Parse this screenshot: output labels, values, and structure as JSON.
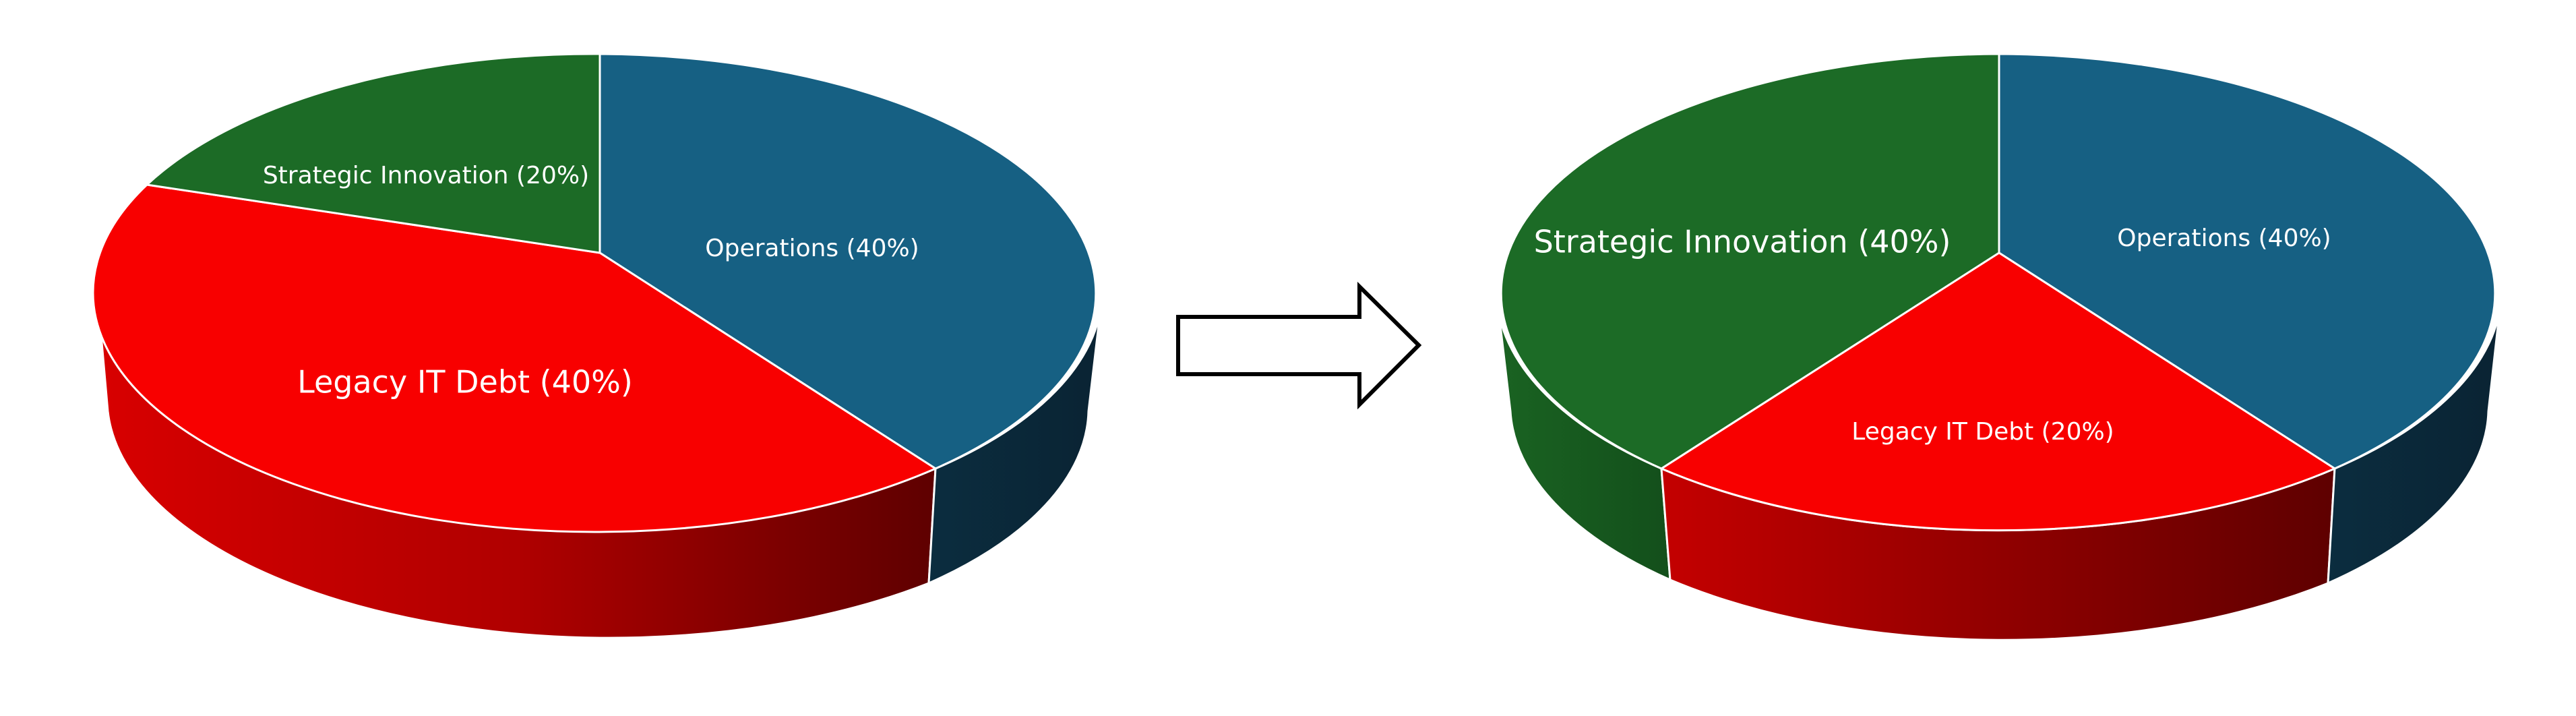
{
  "chart_data": [
    {
      "type": "pie",
      "style": "3d-tilted",
      "title": "",
      "slices": [
        {
          "label": "Operations (40%)",
          "value": 40,
          "top_color": "#166083",
          "side_color": "#0a2a3a"
        },
        {
          "label": "Legacy IT Debt (40%)",
          "value": 40,
          "top_color": "#f80000",
          "side_color": "#c00000"
        },
        {
          "label": "Strategic Innovation (20%)",
          "value": 20,
          "top_color": "#1c6b26",
          "side_color": "#124e1a"
        }
      ]
    },
    {
      "type": "pie",
      "style": "3d-tilted",
      "title": "",
      "slices": [
        {
          "label": "Operations (40%)",
          "value": 40,
          "top_color": "#166083",
          "side_color": "#0a2a3a"
        },
        {
          "label": "Legacy IT Debt (20%)",
          "value": 20,
          "top_color": "#f80000",
          "side_color": "#c00000"
        },
        {
          "label": "Strategic Innovation (40%)",
          "value": 40,
          "top_color": "#1c6b26",
          "side_color": "#124e1a"
        }
      ]
    }
  ],
  "transition_arrow": {
    "icon": "right-arrow-outline-icon",
    "stroke": "#000000",
    "fill": "#ffffff"
  }
}
